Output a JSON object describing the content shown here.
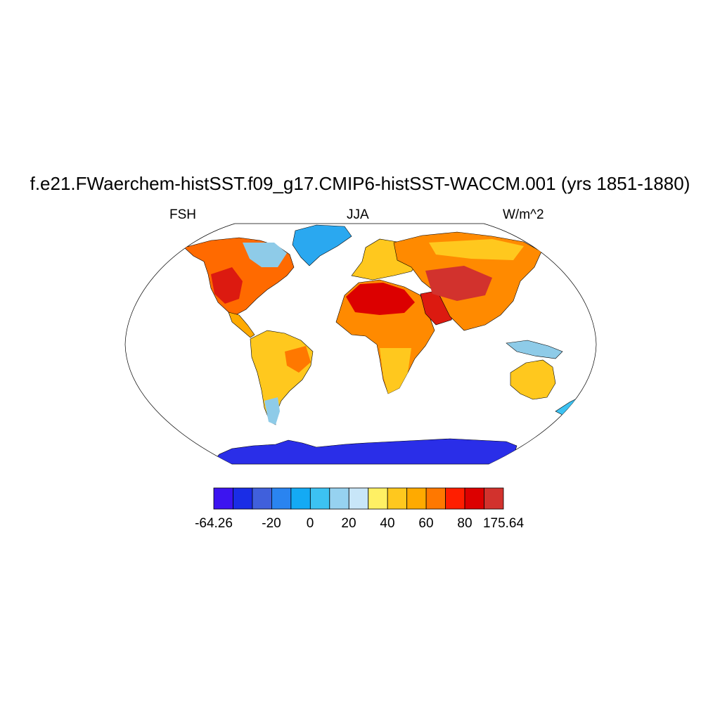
{
  "title": "f.e21.FWaerchem-histSST.f09_g17.CMIP6-histSST-WACCM.001 (yrs 1851-1880)",
  "left_string": "FSH",
  "center_string": "JJA",
  "right_string": "W/m^2",
  "projection": "Robinson",
  "colorbar": {
    "colors": [
      "#3c14f0",
      "#1a2de6",
      "#4060dc",
      "#2a84f0",
      "#14aaf4",
      "#3cc2f2",
      "#96d2f0",
      "#c8e6f8",
      "#fff064",
      "#ffc81e",
      "#ffaa00",
      "#ff7800",
      "#ff1e00",
      "#dc0000",
      "#d2322d"
    ],
    "labels": [
      "-64.26",
      "-20",
      "0",
      "20",
      "40",
      "60",
      "80",
      "175.64"
    ]
  },
  "map": {
    "ocean_color": "#ffffff",
    "coast_color": "#000000"
  }
}
